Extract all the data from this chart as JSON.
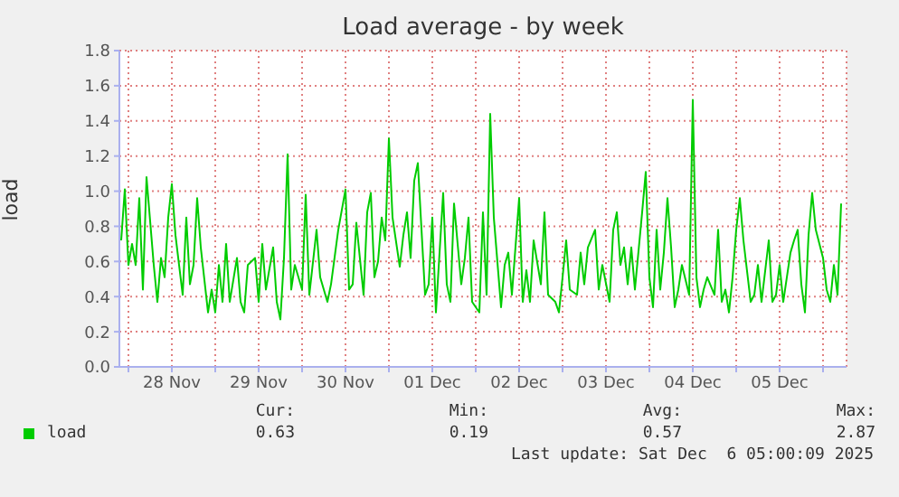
{
  "chart_data": {
    "type": "line",
    "title": "Load average - by week",
    "ylabel": "load",
    "x": [
      "2025-11-27T22:00",
      "2025-11-27T23:00",
      "2025-11-28T00:00",
      "2025-11-28T01:00",
      "2025-11-28T02:00",
      "2025-11-28T03:00",
      "2025-11-28T04:00",
      "2025-11-28T05:00",
      "2025-11-28T07:00",
      "2025-11-28T08:00",
      "2025-11-28T09:00",
      "2025-11-28T10:00",
      "2025-11-28T11:00",
      "2025-11-28T12:00",
      "2025-11-28T13:00",
      "2025-11-28T15:00",
      "2025-11-28T16:00",
      "2025-11-28T17:00",
      "2025-11-28T18:00",
      "2025-11-28T19:00",
      "2025-11-28T20:00",
      "2025-11-28T22:00",
      "2025-11-28T23:00",
      "2025-11-29T00:00",
      "2025-11-29T01:00",
      "2025-11-29T02:00",
      "2025-11-29T03:00",
      "2025-11-29T04:00",
      "2025-11-29T06:00",
      "2025-11-29T07:00",
      "2025-11-29T08:00",
      "2025-11-29T09:00",
      "2025-11-29T11:00",
      "2025-11-29T12:00",
      "2025-11-29T13:00",
      "2025-11-29T14:00",
      "2025-11-29T16:00",
      "2025-11-29T17:00",
      "2025-11-29T18:00",
      "2025-11-29T19:00",
      "2025-11-29T20:00",
      "2025-11-29T21:00",
      "2025-11-29T22:00",
      "2025-11-30T00:00",
      "2025-11-30T01:00",
      "2025-11-30T02:00",
      "2025-11-30T04:00",
      "2025-11-30T05:00",
      "2025-11-30T07:00",
      "2025-11-30T08:00",
      "2025-11-30T10:00",
      "2025-11-30T12:00",
      "2025-11-30T13:00",
      "2025-11-30T14:00",
      "2025-11-30T15:00",
      "2025-11-30T17:00",
      "2025-11-30T18:00",
      "2025-11-30T19:00",
      "2025-11-30T20:00",
      "2025-11-30T21:00",
      "2025-11-30T22:00",
      "2025-11-30T23:00",
      "2025-12-01T00:00",
      "2025-12-01T01:00",
      "2025-12-01T03:00",
      "2025-12-01T04:00",
      "2025-12-01T05:00",
      "2025-12-01T06:00",
      "2025-12-01T07:00",
      "2025-12-01T08:00",
      "2025-12-01T10:00",
      "2025-12-01T11:00",
      "2025-12-01T12:00",
      "2025-12-01T13:00",
      "2025-12-01T15:00",
      "2025-12-01T16:00",
      "2025-12-01T17:00",
      "2025-12-01T18:00",
      "2025-12-01T20:00",
      "2025-12-01T21:00",
      "2025-12-01T22:00",
      "2025-12-01T23:00",
      "2025-12-02T01:00",
      "2025-12-02T02:00",
      "2025-12-02T03:00",
      "2025-12-02T04:00",
      "2025-12-02T05:00",
      "2025-12-02T07:00",
      "2025-12-02T08:00",
      "2025-12-02T09:00",
      "2025-12-02T10:00",
      "2025-12-02T12:00",
      "2025-12-02T13:00",
      "2025-12-02T14:00",
      "2025-12-02T15:00",
      "2025-12-02T16:00",
      "2025-12-02T18:00",
      "2025-12-02T19:00",
      "2025-12-02T20:00",
      "2025-12-02T22:00",
      "2025-12-02T23:00",
      "2025-12-03T00:00",
      "2025-12-03T01:00",
      "2025-12-03T02:00",
      "2025-12-03T04:00",
      "2025-12-03T05:00",
      "2025-12-03T06:00",
      "2025-12-03T07:00",
      "2025-12-03T09:00",
      "2025-12-03T10:00",
      "2025-12-03T11:00",
      "2025-12-03T13:00",
      "2025-12-03T14:00",
      "2025-12-03T15:00",
      "2025-12-03T16:00",
      "2025-12-03T17:00",
      "2025-12-03T18:00",
      "2025-12-03T19:00",
      "2025-12-03T20:00",
      "2025-12-03T22:00",
      "2025-12-03T23:00",
      "2025-12-04T00:00",
      "2025-12-04T01:00",
      "2025-12-04T02:00",
      "2025-12-04T03:00",
      "2025-12-04T04:00",
      "2025-12-04T05:00",
      "2025-12-04T06:00",
      "2025-12-04T07:00",
      "2025-12-04T08:00",
      "2025-12-04T09:00",
      "2025-12-04T11:00",
      "2025-12-04T12:00",
      "2025-12-04T13:00",
      "2025-12-04T14:00",
      "2025-12-04T15:00",
      "2025-12-04T16:00",
      "2025-12-04T18:00",
      "2025-12-04T19:00",
      "2025-12-04T20:00",
      "2025-12-04T21:00",
      "2025-12-04T22:00",
      "2025-12-04T23:00",
      "2025-12-05T00:00",
      "2025-12-05T01:00",
      "2025-12-05T02:00",
      "2025-12-05T04:00",
      "2025-12-05T05:00",
      "2025-12-05T06:00",
      "2025-12-05T07:00",
      "2025-12-05T09:00",
      "2025-12-05T10:00",
      "2025-12-05T11:00",
      "2025-12-05T12:00",
      "2025-12-05T13:00",
      "2025-12-05T15:00",
      "2025-12-05T16:00",
      "2025-12-05T17:00",
      "2025-12-05T18:00",
      "2025-12-05T19:00",
      "2025-12-05T20:00",
      "2025-12-05T21:00",
      "2025-12-05T22:00",
      "2025-12-06T00:00",
      "2025-12-06T01:00",
      "2025-12-06T02:00",
      "2025-12-06T03:00",
      "2025-12-06T04:00",
      "2025-12-06T05:00"
    ],
    "series": [
      {
        "name": "load",
        "color": "#00cc00",
        "values": [
          0.72,
          1.01,
          0.58,
          0.7,
          0.58,
          0.96,
          0.44,
          1.08,
          0.58,
          0.37,
          0.62,
          0.51,
          0.85,
          1.04,
          0.75,
          0.41,
          0.85,
          0.47,
          0.58,
          0.96,
          0.68,
          0.31,
          0.44,
          0.31,
          0.58,
          0.37,
          0.7,
          0.37,
          0.62,
          0.37,
          0.31,
          0.58,
          0.62,
          0.37,
          0.7,
          0.44,
          0.68,
          0.37,
          0.27,
          0.62,
          1.21,
          0.44,
          0.58,
          0.44,
          0.98,
          0.41,
          0.78,
          0.51,
          0.37,
          0.47,
          0.78,
          1.01,
          0.44,
          0.47,
          0.82,
          0.41,
          0.88,
          0.99,
          0.51,
          0.6,
          0.85,
          0.72,
          1.3,
          0.85,
          0.57,
          0.75,
          0.88,
          0.62,
          1.06,
          1.16,
          0.41,
          0.47,
          0.85,
          0.31,
          0.99,
          0.47,
          0.37,
          0.93,
          0.47,
          0.62,
          0.85,
          0.37,
          0.31,
          0.88,
          0.41,
          1.44,
          0.85,
          0.34,
          0.58,
          0.65,
          0.41,
          0.96,
          0.37,
          0.55,
          0.37,
          0.72,
          0.47,
          0.88,
          0.41,
          0.37,
          0.31,
          0.51,
          0.72,
          0.44,
          0.41,
          0.65,
          0.47,
          0.68,
          0.78,
          0.44,
          0.58,
          0.37,
          0.78,
          0.88,
          0.58,
          0.68,
          0.47,
          0.68,
          0.44,
          0.88,
          1.11,
          0.51,
          0.34,
          0.78,
          0.44,
          0.65,
          0.96,
          0.68,
          0.34,
          0.44,
          0.58,
          0.41,
          1.52,
          0.51,
          0.34,
          0.44,
          0.51,
          0.41,
          0.78,
          0.37,
          0.44,
          0.31,
          0.51,
          0.78,
          0.96,
          0.72,
          0.37,
          0.41,
          0.58,
          0.37,
          0.72,
          0.37,
          0.41,
          0.58,
          0.37,
          0.65,
          0.72,
          0.78,
          0.47,
          0.31,
          0.75,
          0.99,
          0.78,
          0.62,
          0.44,
          0.37,
          0.58,
          0.41,
          0.93
        ]
      }
    ],
    "xlim": [
      "2025-11-27T21:30",
      "2025-12-06T06:30"
    ],
    "xticks": [
      {
        "value": "2025-11-28T00:00",
        "label": null
      },
      {
        "value": "2025-11-28T12:00",
        "label": "28 Nov"
      },
      {
        "value": "2025-11-29T00:00",
        "label": null
      },
      {
        "value": "2025-11-29T12:00",
        "label": "29 Nov"
      },
      {
        "value": "2025-11-30T00:00",
        "label": null
      },
      {
        "value": "2025-11-30T12:00",
        "label": "30 Nov"
      },
      {
        "value": "2025-12-01T00:00",
        "label": null
      },
      {
        "value": "2025-12-01T12:00",
        "label": "01 Dec"
      },
      {
        "value": "2025-12-02T00:00",
        "label": null
      },
      {
        "value": "2025-12-02T12:00",
        "label": "02 Dec"
      },
      {
        "value": "2025-12-03T00:00",
        "label": null
      },
      {
        "value": "2025-12-03T12:00",
        "label": "03 Dec"
      },
      {
        "value": "2025-12-04T00:00",
        "label": null
      },
      {
        "value": "2025-12-04T12:00",
        "label": "04 Dec"
      },
      {
        "value": "2025-12-05T00:00",
        "label": null
      },
      {
        "value": "2025-12-05T12:00",
        "label": "05 Dec"
      },
      {
        "value": "2025-12-06T00:00",
        "label": null
      }
    ],
    "ylim": [
      0,
      1.8
    ],
    "yticks": [
      {
        "value": 0,
        "label": "0.0"
      },
      {
        "value": 0.2,
        "label": "0.2"
      },
      {
        "value": 0.4,
        "label": "0.4"
      },
      {
        "value": 0.6,
        "label": "0.6"
      },
      {
        "value": 0.8,
        "label": "0.8"
      },
      {
        "value": 1,
        "label": "1.0"
      },
      {
        "value": 1.2,
        "label": "1.2"
      },
      {
        "value": 1.4,
        "label": "1.4"
      },
      {
        "value": 1.6,
        "label": "1.6"
      },
      {
        "value": 1.8,
        "label": "1.8"
      }
    ],
    "grid": true,
    "legend": "bottom left",
    "marker": "none",
    "line_style": "solid",
    "annotations": [
      "Cur:",
      "0.63",
      "Min:",
      "0.19",
      "Avg:",
      "0.57",
      "Max:",
      "2.87",
      "Last update: Sat Dec  6 05:00:09 2025"
    ]
  }
}
